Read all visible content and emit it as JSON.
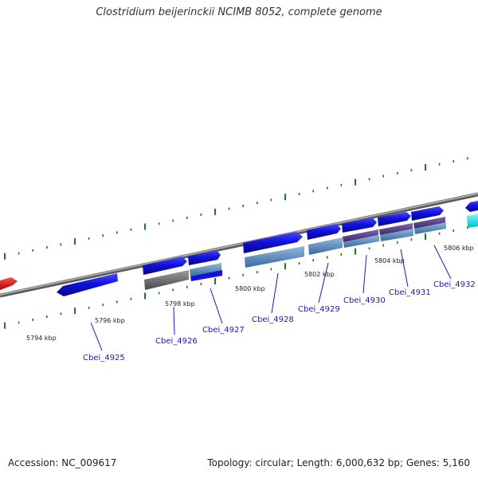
{
  "title": "Clostridium beijerinckii NCIMB 8052, complete genome",
  "footer": {
    "accession": "Accession: NC_009617",
    "topology": "Topology: circular; Length: 6,000,632 bp; Genes: 5,160"
  },
  "colors": {
    "backbone": "#8a8a8a",
    "cds_blue": "#1212e0",
    "cds_blue_dark": "#0a0a9a",
    "rna_red": "#ee1010",
    "cyan": "#00e5ee",
    "track_steelblue": "#5b8fc4",
    "track_gray": "#6a6a6a",
    "track_purple": "#55408a",
    "tick_green": "#1b7a1b",
    "label_blue": "#1a1aa6"
  },
  "scale_labels": [
    "5794 kbp",
    "5796 kbp",
    "5798 kbp",
    "5800 kbp",
    "5802 kbp",
    "5804 kbp",
    "5806 kbp"
  ],
  "genes": [
    {
      "label": "Cbei_4925"
    },
    {
      "label": "Cbei_4926"
    },
    {
      "label": "Cbei_4927"
    },
    {
      "label": "Cbei_4928"
    },
    {
      "label": "Cbei_4929"
    },
    {
      "label": "Cbei_4930"
    },
    {
      "label": "Cbei_4931"
    },
    {
      "label": "Cbei_4932"
    }
  ]
}
